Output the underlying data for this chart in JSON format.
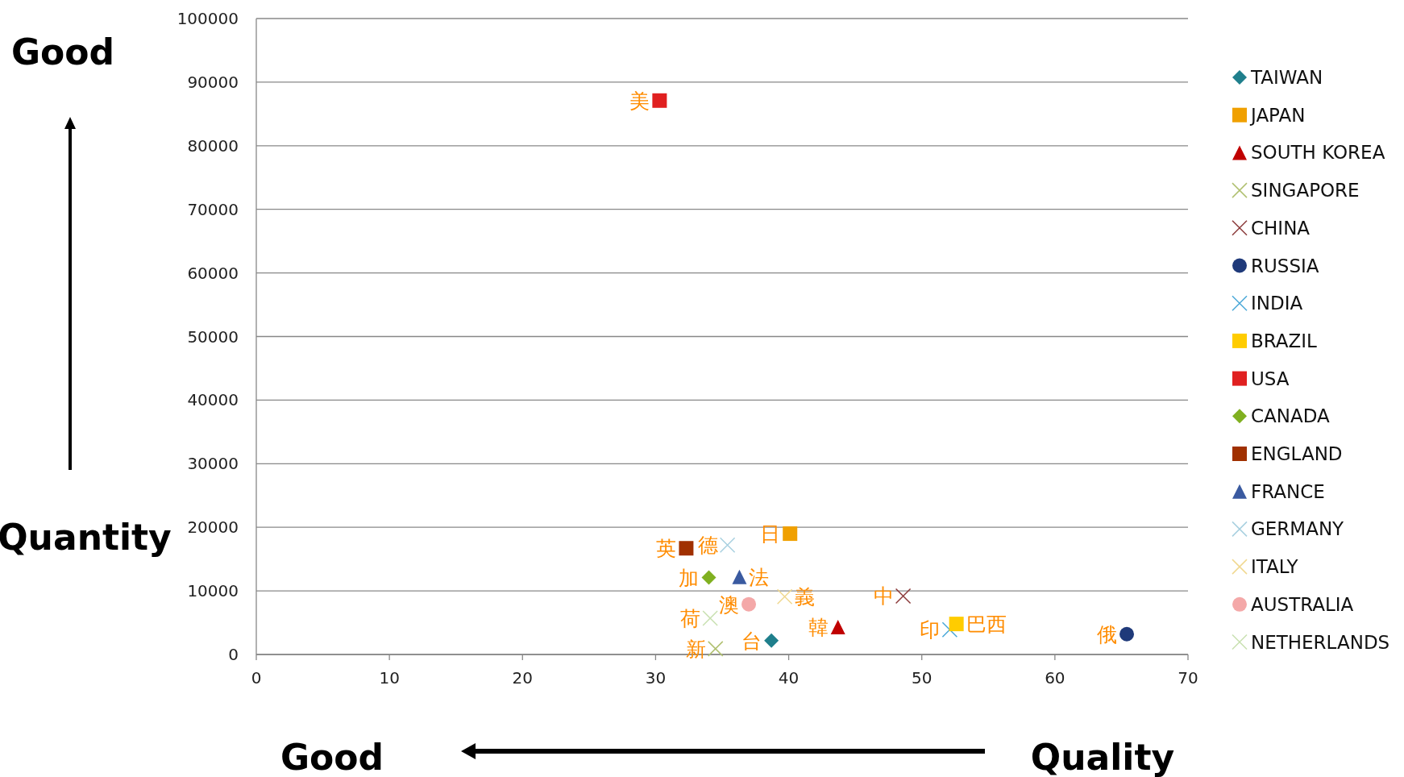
{
  "chart_data": {
    "type": "scatter",
    "xlabel": "Quality",
    "ylabel": "Quantity",
    "xlim": [
      0,
      70
    ],
    "xticks": [
      0,
      10,
      20,
      30,
      40,
      50,
      60,
      70
    ],
    "ylim": [
      0,
      100000
    ],
    "yticks": [
      0,
      10000,
      20000,
      30000,
      40000,
      50000,
      60000,
      70000,
      80000,
      90000,
      100000
    ],
    "grid": "y",
    "legend": "right",
    "series": [
      {
        "name": "TAIWAN",
        "color": "#1f7f8c",
        "marker": "diamond",
        "x": [
          38.7
        ],
        "values": [
          2200
        ]
      },
      {
        "name": "JAPAN",
        "color": "#f0a000",
        "marker": "square",
        "x": [
          40.1
        ],
        "values": [
          19000
        ]
      },
      {
        "name": "SOUTH KOREA",
        "color": "#c00000",
        "marker": "triangle",
        "x": [
          43.7
        ],
        "values": [
          4300
        ]
      },
      {
        "name": "SINGAPORE",
        "color": "#b0c070",
        "marker": "cross",
        "x": [
          34.5
        ],
        "values": [
          900
        ]
      },
      {
        "name": "CHINA",
        "color": "#8b3a3a",
        "marker": "cross",
        "x": [
          48.6
        ],
        "values": [
          9200
        ]
      },
      {
        "name": "RUSSIA",
        "color": "#1f3a7a",
        "marker": "circle",
        "x": [
          65.4
        ],
        "values": [
          3200
        ]
      },
      {
        "name": "INDIA",
        "color": "#4aa8d8",
        "marker": "cross",
        "x": [
          52.1
        ],
        "values": [
          3900
        ]
      },
      {
        "name": "BRAZIL",
        "color": "#ffcc00",
        "marker": "square",
        "x": [
          52.6
        ],
        "values": [
          4800
        ]
      },
      {
        "name": "USA",
        "color": "#e02020",
        "marker": "square",
        "x": [
          30.3
        ],
        "values": [
          87100
        ]
      },
      {
        "name": "CANADA",
        "color": "#80b020",
        "marker": "diamond",
        "x": [
          34.0
        ],
        "values": [
          12100
        ]
      },
      {
        "name": "ENGLAND",
        "color": "#a03000",
        "marker": "square",
        "x": [
          32.3
        ],
        "values": [
          16700
        ]
      },
      {
        "name": "FRANCE",
        "color": "#3a5aa0",
        "marker": "triangle",
        "x": [
          36.3
        ],
        "values": [
          12200
        ]
      },
      {
        "name": "GERMANY",
        "color": "#a8d0e0",
        "marker": "cross",
        "x": [
          35.4
        ],
        "values": [
          17200
        ]
      },
      {
        "name": "ITALY",
        "color": "#f0d890",
        "marker": "cross",
        "x": [
          39.7
        ],
        "values": [
          9100
        ]
      },
      {
        "name": "AUSTRALIA",
        "color": "#f4a8a8",
        "marker": "circle",
        "x": [
          37.0
        ],
        "values": [
          7900
        ]
      },
      {
        "name": "NETHERLANDS",
        "color": "#c8e0b0",
        "marker": "cross",
        "x": [
          34.1
        ],
        "values": [
          5700
        ]
      }
    ],
    "annotations": [
      "Good",
      "Good",
      {
        "text": "台",
        "x": 38.7,
        "y": 2200
      },
      {
        "text": "日",
        "x": 40.1,
        "y": 19000
      },
      {
        "text": "韓",
        "x": 43.7,
        "y": 4300
      },
      {
        "text": "新",
        "x": 34.5,
        "y": 900
      },
      {
        "text": "中",
        "x": 48.6,
        "y": 9200
      },
      {
        "text": "俄",
        "x": 65.4,
        "y": 3200
      },
      {
        "text": "印",
        "x": 52.1,
        "y": 3900
      },
      {
        "text": "巴西",
        "x": 52.6,
        "y": 4800
      },
      {
        "text": "美",
        "x": 30.3,
        "y": 87100
      },
      {
        "text": "加",
        "x": 34.0,
        "y": 12100
      },
      {
        "text": "英",
        "x": 32.3,
        "y": 16700
      },
      {
        "text": "法",
        "x": 36.3,
        "y": 12200
      },
      {
        "text": "德",
        "x": 35.4,
        "y": 17200
      },
      {
        "text": "義",
        "x": 39.7,
        "y": 9100
      },
      {
        "text": "澳",
        "x": 37.0,
        "y": 7900
      },
      {
        "text": "荷",
        "x": 34.1,
        "y": 5700
      }
    ]
  }
}
